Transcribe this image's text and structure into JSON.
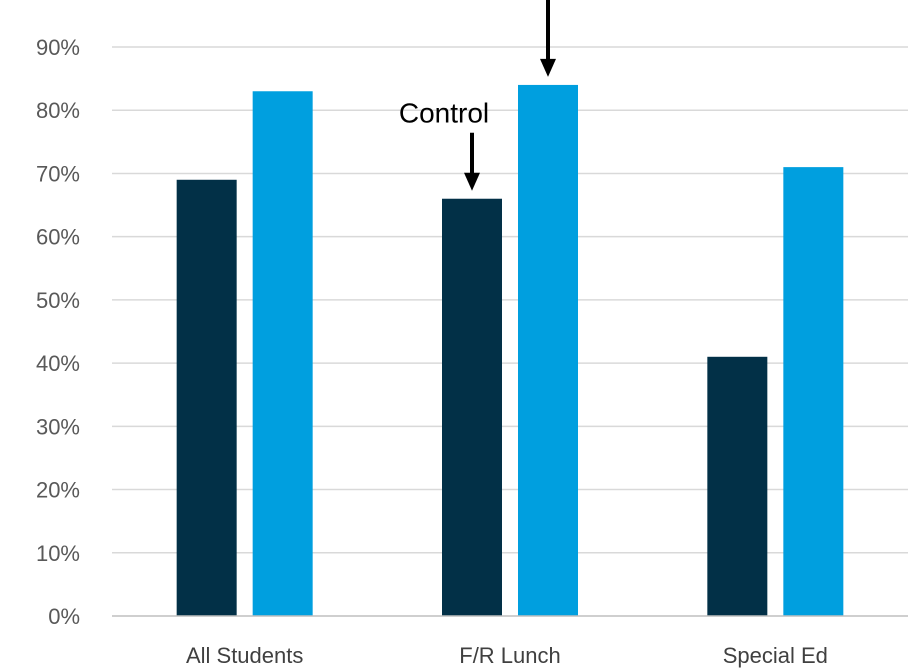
{
  "chart_data": {
    "type": "bar",
    "title": "",
    "xlabel": "",
    "ylabel": "",
    "categories": [
      "All Students",
      "F/R Lunch",
      "Special Ed"
    ],
    "series": [
      {
        "values": [
          69,
          66,
          41
        ],
        "color": "#023047"
      },
      {
        "values": [
          83,
          84,
          71
        ],
        "color": "#009fdf"
      }
    ],
    "ylim": [
      0,
      90
    ],
    "yticks": [
      0,
      10,
      20,
      30,
      40,
      50,
      60,
      70,
      80,
      90
    ],
    "ytick_format": "%",
    "grid": true,
    "legend": "none",
    "annotations": [
      {
        "text": "Control",
        "category": "F/R Lunch",
        "series_index": 0,
        "arrow": true
      },
      {
        "text": "",
        "category": "F/R Lunch",
        "series_index": 1,
        "arrow": true
      }
    ]
  }
}
